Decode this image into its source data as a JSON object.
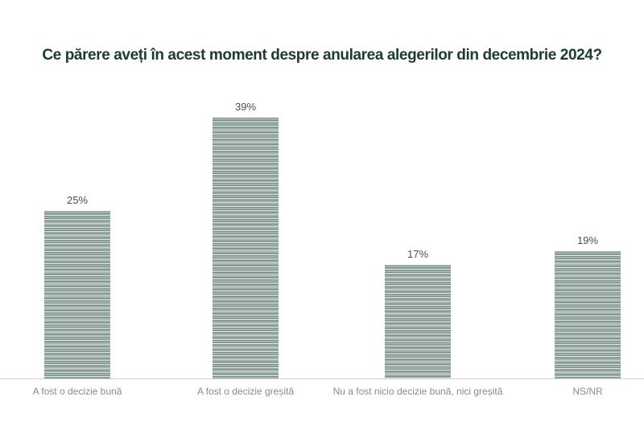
{
  "title": "Ce părere aveți în acest moment despre anularea alegerilor din decembrie 2024?",
  "chart_data": {
    "type": "bar",
    "title": "Ce părere aveți în acest moment despre anularea alegerilor din decembrie 2024?",
    "categories": [
      "A fost o decizie bună",
      "A fost o decizie greșită",
      "Nu a fost nicio decizie bună, nici greșită",
      "NS/NR"
    ],
    "values": [
      25,
      39,
      17,
      19
    ],
    "value_labels": [
      "25%",
      "39%",
      "17%",
      "19%"
    ],
    "xlabel": "",
    "ylabel": "",
    "ylim": [
      0,
      45
    ],
    "grid": false,
    "legend": null,
    "bar_texture": "horizontal-stripes",
    "colors": {
      "bar_base": "#9fb2ad",
      "bar_stripe_light": "#d3ded9",
      "bar_stripe_dark": "#758782",
      "title_text": "#1d3a33",
      "value_label_text": "#4d4d4d",
      "category_label_text": "#8a8a8a",
      "axis_line": "#cfcfcf",
      "background": "#ffffff"
    }
  }
}
